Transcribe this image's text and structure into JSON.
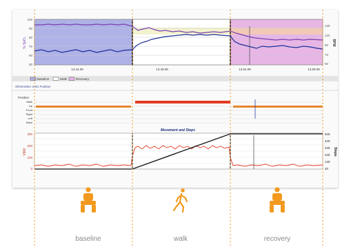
{
  "top_chart": {
    "y_left_label": "% SpO₂",
    "y_right_label": "BPM",
    "y_left_ticks": [
      "100",
      "90",
      "80",
      "70",
      "60",
      "50"
    ],
    "y_right_ticks": [
      "130",
      "110",
      "90",
      "70",
      "50"
    ],
    "x_ticks": [
      "13.44.09",
      "13.49.09",
      "13.54.09",
      "13.59.09"
    ],
    "legend": {
      "baseline": "Baseline",
      "walk": "Walk",
      "recovery": "Recovery"
    },
    "phase_colors": {
      "baseline": "#aeb2e6",
      "walk": "#f3f2cf",
      "recovery": "#e7b6e5"
    }
  },
  "middle_panel": {
    "header": "ShineVideo VMU Position",
    "title": "Position",
    "rows": [
      "Walk",
      "Up",
      "Front",
      "Right",
      "Left",
      "Back"
    ]
  },
  "bottom_chart": {
    "title": "Movement and Steps",
    "y_left_label": "VMU",
    "y_right_label": "Steps",
    "y_left_ticks": [
      "300",
      "200",
      "100",
      "0"
    ],
    "y_right_ticks": [
      "540",
      "440",
      "340",
      "240",
      "140",
      "40"
    ]
  },
  "phases": [
    {
      "label": "baseline",
      "icon": "sitting-person-icon"
    },
    {
      "label": "walk",
      "icon": "walking-person-icon"
    },
    {
      "label": "recovery",
      "icon": "sitting-person-icon"
    }
  ],
  "accent_color": "#f39a1e"
}
